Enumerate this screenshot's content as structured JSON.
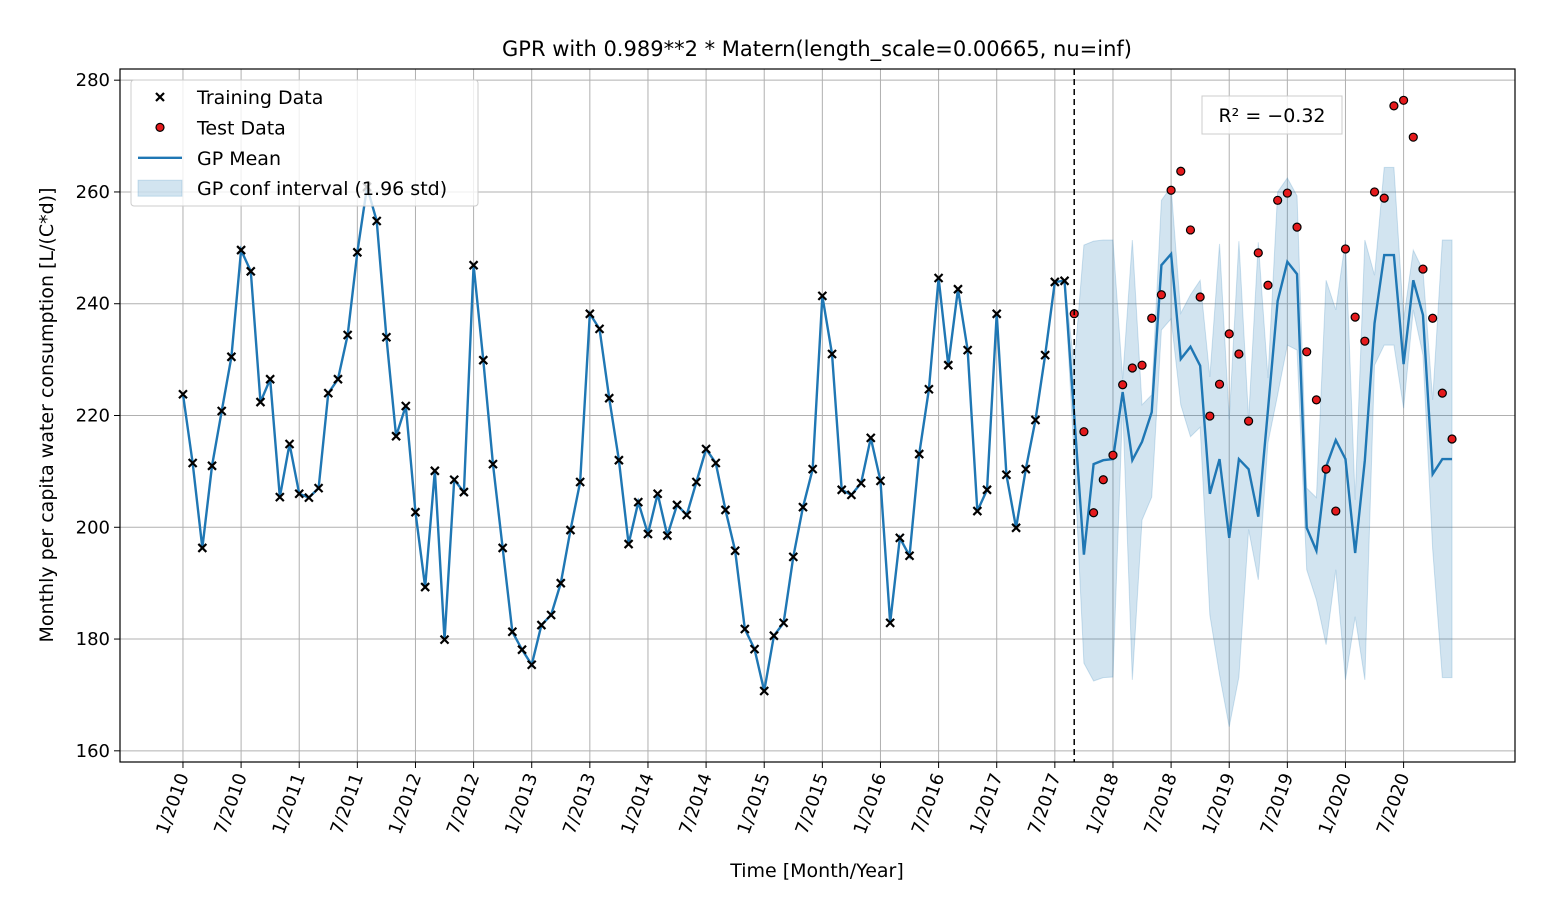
{
  "chart_data": {
    "type": "line",
    "title": "GPR with 0.989**2 * Matern(length_scale=0.00665, nu=inf)",
    "x_label": "Time [Month/Year]",
    "y_label": "Monthly per capita water consumption [L/(C*d)]",
    "annotation": "R² = −0.32",
    "x": [
      "1/2010",
      "2/2010",
      "3/2010",
      "4/2010",
      "5/2010",
      "6/2010",
      "7/2010",
      "8/2010",
      "9/2010",
      "10/2010",
      "11/2010",
      "12/2010",
      "1/2011",
      "2/2011",
      "3/2011",
      "4/2011",
      "5/2011",
      "6/2011",
      "7/2011",
      "8/2011",
      "9/2011",
      "10/2011",
      "11/2011",
      "12/2011",
      "1/2012",
      "2/2012",
      "3/2012",
      "4/2012",
      "5/2012",
      "6/2012",
      "7/2012",
      "8/2012",
      "9/2012",
      "10/2012",
      "11/2012",
      "12/2012",
      "1/2013",
      "2/2013",
      "3/2013",
      "4/2013",
      "5/2013",
      "6/2013",
      "7/2013",
      "8/2013",
      "9/2013",
      "10/2013",
      "11/2013",
      "12/2013",
      "1/2014",
      "2/2014",
      "3/2014",
      "4/2014",
      "5/2014",
      "6/2014",
      "7/2014",
      "8/2014",
      "9/2014",
      "10/2014",
      "11/2014",
      "12/2014",
      "1/2015",
      "2/2015",
      "3/2015",
      "4/2015",
      "5/2015",
      "6/2015",
      "7/2015",
      "8/2015",
      "9/2015",
      "10/2015",
      "11/2015",
      "12/2015",
      "1/2016",
      "2/2016",
      "3/2016",
      "4/2016",
      "5/2016",
      "6/2016",
      "7/2016",
      "8/2016",
      "9/2016",
      "10/2016",
      "11/2016",
      "12/2016",
      "1/2017",
      "2/2017",
      "3/2017",
      "4/2017",
      "5/2017",
      "6/2017",
      "7/2017",
      "8/2017",
      "9/2017",
      "10/2017",
      "11/2017",
      "12/2017",
      "1/2018",
      "2/2018",
      "3/2018",
      "4/2018",
      "5/2018",
      "6/2018",
      "7/2018",
      "8/2018",
      "9/2018",
      "10/2018",
      "11/2018",
      "12/2018",
      "1/2019",
      "2/2019",
      "3/2019",
      "4/2019",
      "5/2019",
      "6/2019",
      "7/2019",
      "8/2019",
      "9/2019",
      "10/2019",
      "11/2019",
      "12/2019",
      "1/2020",
      "2/2020",
      "3/2020",
      "4/2020",
      "5/2020",
      "6/2020",
      "7/2020",
      "8/2020",
      "9/2020",
      "10/2020",
      "11/2020",
      "12/2020"
    ],
    "xticks": [
      "1/2010",
      "7/2010",
      "1/2011",
      "7/2011",
      "1/2012",
      "7/2012",
      "1/2013",
      "7/2013",
      "1/2014",
      "7/2014",
      "1/2015",
      "7/2015",
      "1/2016",
      "7/2016",
      "1/2017",
      "7/2017",
      "1/2018",
      "7/2018",
      "1/2019",
      "7/2019",
      "1/2020",
      "7/2020"
    ],
    "vline_x": "9/2017",
    "ylim": [
      158,
      282
    ],
    "yticks": [
      160,
      180,
      200,
      220,
      240,
      260,
      280
    ],
    "grid": true,
    "legend": "upper left",
    "series": [
      {
        "name": "Training Data",
        "kind": "x-marker",
        "color": "#000000",
        "values": [
          223.8,
          211.5,
          196.3,
          211.0,
          220.8,
          230.5,
          249.6,
          245.8,
          222.4,
          226.5,
          205.4,
          214.9,
          206.0,
          205.3,
          207.0,
          224.0,
          226.5,
          234.4,
          249.2,
          260.9,
          254.8,
          234.0,
          216.3,
          221.7,
          202.7,
          189.3,
          210.1,
          179.9,
          208.5,
          206.3,
          246.9,
          229.9,
          211.3,
          196.3,
          181.3,
          178.1,
          175.4,
          182.5,
          184.3,
          190.0,
          199.5,
          208.1,
          238.2,
          235.5,
          223.1,
          212.0,
          197.0,
          204.5,
          198.8,
          206.0,
          198.5,
          204.0,
          202.2,
          208.1,
          214.0,
          211.5,
          203.1,
          195.8,
          181.8,
          178.2,
          170.7,
          180.6,
          182.9,
          194.7,
          203.6,
          210.4,
          241.4,
          231.0,
          206.7,
          205.8,
          207.9,
          216.0,
          208.3,
          182.9,
          198.1,
          194.9,
          213.1,
          224.7,
          244.6,
          229.0,
          242.6,
          231.7,
          202.9,
          206.7,
          238.2,
          209.4,
          199.9,
          210.4,
          219.2,
          230.8,
          243.9,
          244.1,
          null,
          null,
          null,
          null,
          null,
          null,
          null,
          null,
          null,
          null,
          null,
          null,
          null,
          null,
          null,
          null,
          null,
          null,
          null,
          null,
          null,
          null,
          null,
          null,
          null,
          null,
          null,
          null,
          null,
          null,
          null,
          null,
          null,
          null,
          null,
          null,
          null,
          null,
          null,
          null
        ]
      },
      {
        "name": "Test Data",
        "kind": "dot",
        "color": "#e41a1c",
        "values": [
          null,
          null,
          null,
          null,
          null,
          null,
          null,
          null,
          null,
          null,
          null,
          null,
          null,
          null,
          null,
          null,
          null,
          null,
          null,
          null,
          null,
          null,
          null,
          null,
          null,
          null,
          null,
          null,
          null,
          null,
          null,
          null,
          null,
          null,
          null,
          null,
          null,
          null,
          null,
          null,
          null,
          null,
          null,
          null,
          null,
          null,
          null,
          null,
          null,
          null,
          null,
          null,
          null,
          null,
          null,
          null,
          null,
          null,
          null,
          null,
          null,
          null,
          null,
          null,
          null,
          null,
          null,
          null,
          null,
          null,
          null,
          null,
          null,
          null,
          null,
          null,
          null,
          null,
          null,
          null,
          null,
          null,
          null,
          null,
          null,
          null,
          null,
          null,
          null,
          null,
          null,
          null,
          238.2,
          217.1,
          202.6,
          208.5,
          212.9,
          225.5,
          228.5,
          229.0,
          237.4,
          241.6,
          260.3,
          263.7,
          253.2,
          241.2,
          219.9,
          225.6,
          234.6,
          231.0,
          219.0,
          249.1,
          243.3,
          258.5,
          259.8,
          253.7,
          231.4,
          222.8,
          210.4,
          202.9,
          249.8,
          237.6,
          233.3,
          260.0,
          258.9,
          275.4,
          276.4,
          269.8,
          246.2,
          237.4,
          224.0,
          215.8
        ]
      },
      {
        "name": "GP Mean",
        "kind": "line",
        "color": "#1f77b4",
        "values": [
          223.8,
          211.5,
          196.3,
          211.0,
          220.8,
          230.5,
          249.6,
          245.8,
          222.4,
          226.5,
          205.4,
          214.9,
          206.0,
          205.3,
          207.0,
          224.0,
          226.5,
          234.4,
          249.2,
          260.9,
          254.8,
          234.0,
          216.3,
          221.7,
          202.7,
          189.3,
          210.1,
          179.9,
          208.5,
          206.3,
          246.9,
          229.9,
          211.3,
          196.3,
          181.3,
          178.1,
          175.4,
          182.5,
          184.3,
          190.0,
          199.5,
          208.1,
          238.2,
          235.5,
          223.1,
          212.0,
          197.0,
          204.5,
          198.8,
          206.0,
          198.5,
          204.0,
          202.2,
          208.1,
          214.0,
          211.5,
          203.1,
          195.8,
          181.8,
          178.2,
          170.7,
          180.6,
          182.9,
          194.7,
          203.6,
          210.4,
          241.4,
          231.0,
          206.7,
          205.8,
          207.9,
          216.0,
          208.3,
          182.9,
          198.1,
          194.9,
          213.1,
          224.7,
          244.6,
          229.0,
          242.6,
          231.7,
          202.9,
          206.7,
          238.2,
          209.4,
          199.9,
          210.4,
          219.2,
          230.8,
          243.9,
          244.1,
          220.0,
          195.1,
          211.3,
          212.0,
          212.2,
          224.2,
          212.0,
          215.3,
          220.6,
          246.9,
          248.9,
          230.1,
          232.3,
          228.9,
          206.0,
          212.2,
          198.1,
          212.2,
          210.4,
          201.9,
          221.0,
          240.5,
          247.5,
          245.3,
          199.9,
          195.8,
          210.8,
          215.6,
          212.2,
          195.4,
          212.0,
          236.5,
          248.7,
          248.7,
          229.2,
          244.2,
          238.0,
          209.5,
          212.2,
          212.2
        ]
      },
      {
        "name": "GP conf interval (1.96 std)",
        "kind": "band",
        "color": "#1f77b4",
        "lower": [
          null,
          null,
          null,
          null,
          null,
          null,
          null,
          null,
          null,
          null,
          null,
          null,
          null,
          null,
          null,
          null,
          null,
          null,
          null,
          null,
          null,
          null,
          null,
          null,
          null,
          null,
          null,
          null,
          null,
          null,
          null,
          null,
          null,
          null,
          null,
          null,
          null,
          null,
          null,
          null,
          null,
          null,
          null,
          null,
          null,
          null,
          null,
          null,
          null,
          null,
          null,
          null,
          null,
          null,
          null,
          null,
          null,
          null,
          null,
          null,
          null,
          null,
          null,
          null,
          null,
          null,
          null,
          null,
          null,
          null,
          null,
          null,
          null,
          null,
          null,
          null,
          null,
          null,
          null,
          null,
          null,
          null,
          null,
          null,
          null,
          null,
          null,
          null,
          null,
          null,
          null,
          244.1,
          212.0,
          175.7,
          172.5,
          173.1,
          173.2,
          221.9,
          172.7,
          201.3,
          205.4,
          235.3,
          237.3,
          221.9,
          216.2,
          217.9,
          184.3,
          173.6,
          164.3,
          173.2,
          199.6,
          190.6,
          215.1,
          223.7,
          232.6,
          231.7,
          192.4,
          187.0,
          179.0,
          192.4,
          172.7,
          184.0,
          172.7,
          229.0,
          232.6,
          232.6,
          221.3,
          238.9,
          230.8,
          196.1,
          173.1,
          173.1
        ],
        "upper": [
          null,
          null,
          null,
          null,
          null,
          null,
          null,
          null,
          null,
          null,
          null,
          null,
          null,
          null,
          null,
          null,
          null,
          null,
          null,
          null,
          null,
          null,
          null,
          null,
          null,
          null,
          null,
          null,
          null,
          null,
          null,
          null,
          null,
          null,
          null,
          null,
          null,
          null,
          null,
          null,
          null,
          null,
          null,
          null,
          null,
          null,
          null,
          null,
          null,
          null,
          null,
          null,
          null,
          null,
          null,
          null,
          null,
          null,
          null,
          null,
          null,
          null,
          null,
          null,
          null,
          null,
          null,
          null,
          null,
          null,
          null,
          null,
          null,
          null,
          null,
          null,
          null,
          null,
          null,
          null,
          null,
          null,
          null,
          null,
          null,
          null,
          null,
          null,
          null,
          null,
          null,
          244.1,
          228.9,
          250.5,
          251.2,
          251.4,
          251.4,
          226.5,
          251.4,
          221.9,
          223.7,
          258.5,
          260.9,
          238.3,
          241.6,
          244.2,
          226.9,
          250.7,
          219.3,
          251.2,
          219.3,
          251.0,
          226.7,
          260.0,
          262.5,
          259.3,
          207.0,
          205.3,
          244.2,
          238.9,
          251.4,
          204.9,
          251.4,
          245.1,
          264.4,
          264.4,
          237.1,
          249.6,
          246.0,
          222.8,
          251.4,
          251.4
        ]
      }
    ]
  }
}
